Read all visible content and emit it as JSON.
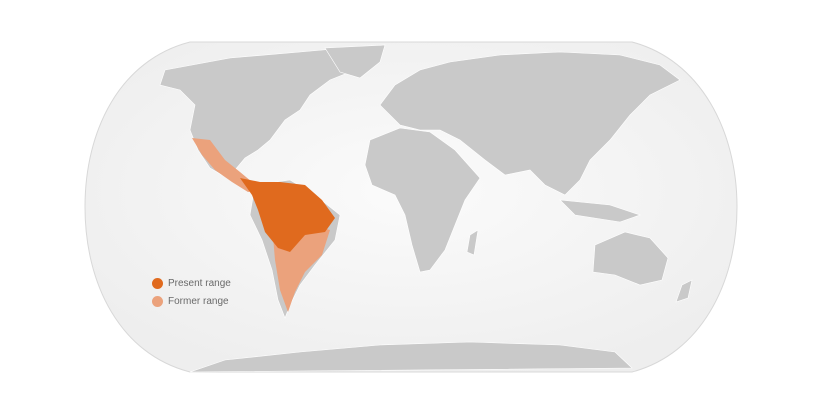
{
  "map": {
    "colors": {
      "ocean": "#f4f4f4",
      "land": "#c9c9c9",
      "border": "#ffffff",
      "present_range": "#e06a1e",
      "former_range": "#eba27c"
    }
  },
  "legend": {
    "items": [
      {
        "label": "Present range",
        "color": "#e06a1e"
      },
      {
        "label": "Former range",
        "color": "#eba27c"
      }
    ]
  }
}
